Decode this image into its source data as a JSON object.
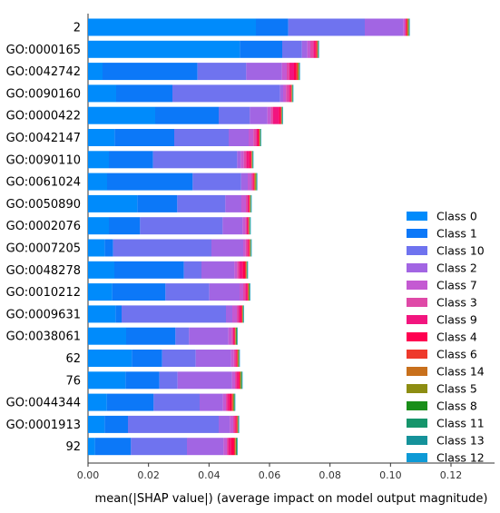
{
  "chart_data": {
    "type": "bar",
    "orientation": "horizontal",
    "stacked": true,
    "title": "",
    "xlabel": "mean(|SHAP value|) (average impact on model output magnitude)",
    "ylabel": "",
    "xlim": [
      0,
      0.1344
    ],
    "xticks": [
      "0.00",
      "0.02",
      "0.04",
      "0.06",
      "0.08",
      "0.10",
      "0.12"
    ],
    "xtick_values": [
      0,
      0.02,
      0.04,
      0.06,
      0.08,
      0.1,
      0.12
    ],
    "grid": false,
    "legend_position": "lower-right",
    "categories": [
      "2",
      "GO:0000165",
      "GO:0042742",
      "GO:0090160",
      "GO:0000422",
      "GO:0042147",
      "GO:0090110",
      "GO:0061024",
      "GO:0050890",
      "GO:0002076",
      "GO:0007205",
      "GO:0048278",
      "GO:0010212",
      "GO:0009631",
      "GO:0038061",
      "62",
      "76",
      "GO:0044344",
      "GO:0001913",
      "92"
    ],
    "series": [
      {
        "name": "Class 0",
        "color": "#008bfb",
        "values": [
          0.0555,
          0.0502,
          0.0048,
          0.0093,
          0.0222,
          0.0088,
          0.0069,
          0.0063,
          0.0163,
          0.0069,
          0.0055,
          0.0087,
          0.008,
          0.0091,
          0.0126,
          0.0145,
          0.0124,
          0.0062,
          0.0055,
          0.0023
        ]
      },
      {
        "name": "Class 1",
        "color": "#0c78f8",
        "values": [
          0.0107,
          0.014,
          0.0314,
          0.0186,
          0.021,
          0.0197,
          0.0146,
          0.0283,
          0.0132,
          0.0103,
          0.0028,
          0.023,
          0.0176,
          0.002,
          0.0163,
          0.01,
          0.0112,
          0.0155,
          0.0077,
          0.0119
        ]
      },
      {
        "name": "Class 10",
        "color": "#6f73ef",
        "values": [
          0.0253,
          0.0065,
          0.0161,
          0.0356,
          0.0103,
          0.018,
          0.0278,
          0.016,
          0.0159,
          0.0273,
          0.0325,
          0.0058,
          0.0145,
          0.0345,
          0.0045,
          0.0111,
          0.006,
          0.0152,
          0.03,
          0.0185
        ]
      },
      {
        "name": "Class 2",
        "color": "#a265e3",
        "values": [
          0.0127,
          0.0018,
          0.0118,
          0.001,
          0.0058,
          0.0066,
          0.0012,
          0.0022,
          0.0053,
          0.0066,
          0.0105,
          0.0109,
          0.01,
          0.0021,
          0.013,
          0.0117,
          0.018,
          0.0077,
          0.0037,
          0.0121
        ]
      },
      {
        "name": "Class 7",
        "color": "#c45ad2",
        "values": [
          0.0005,
          0.001,
          0.0016,
          0.001,
          0.0011,
          0.0016,
          0.001,
          0.0012,
          0.0015,
          0.0009,
          0.0008,
          0.0009,
          0.0012,
          0.0015,
          0.0011,
          0.0009,
          0.001,
          0.001,
          0.0011,
          0.0011
        ]
      },
      {
        "name": "Class 3",
        "color": "#df49a7",
        "values": [
          0.0003,
          0.001,
          0.0008,
          0.0009,
          0.0007,
          0.0009,
          0.0008,
          0.0004,
          0.0006,
          0.0005,
          0.0005,
          0.0006,
          0.0007,
          0.0006,
          0.0005,
          0.0005,
          0.0004,
          0.0004,
          0.0004,
          0.0004
        ]
      },
      {
        "name": "Class 9",
        "color": "#f2157f",
        "values": [
          0.0002,
          0.0006,
          0.0016,
          0.0004,
          0.002,
          0.0005,
          0.001,
          0.0003,
          0.0003,
          0.0003,
          0.0004,
          0.0012,
          0.0006,
          0.0005,
          0.0003,
          0.0004,
          0.0007,
          0.0007,
          0.0004,
          0.0009
        ]
      },
      {
        "name": "Class 4",
        "color": "#ff0051",
        "values": [
          0.0001,
          0.0004,
          0.0008,
          0.0003,
          0.0006,
          0.0004,
          0.0006,
          0.0002,
          0.0002,
          0.0002,
          0.0003,
          0.0008,
          0.0002,
          0.0005,
          0.0002,
          0.0002,
          0.0004,
          0.0008,
          0.0003,
          0.0011
        ]
      },
      {
        "name": "Class 6",
        "color": "#ee3a2c",
        "values": [
          0.0003,
          0.0003,
          0.0004,
          0.0002,
          0.0002,
          0.0002,
          0.0002,
          0.0002,
          0.0002,
          0.0002,
          0.0002,
          0.0004,
          0.0002,
          0.0002,
          0.0002,
          0.0002,
          0.0002,
          0.0004,
          0.0003,
          0.0004
        ]
      },
      {
        "name": "Class 14",
        "color": "#c8701c",
        "values": [
          0.0002,
          0.0001,
          0.0002,
          0.0001,
          0.0001,
          0.0001,
          0.0001,
          0.0002,
          0.0001,
          0.0001,
          0.0001,
          0.0001,
          0.0001,
          0.0001,
          0.0001,
          0.0001,
          0.0001,
          0.0001,
          0.0001,
          0.0001
        ]
      },
      {
        "name": "Class 5",
        "color": "#8d8d12",
        "values": [
          0.0002,
          0.0001,
          0.0002,
          0.0001,
          0.0001,
          0.0001,
          0.0001,
          0.0003,
          0.0001,
          0.0001,
          0.0001,
          0.0001,
          0.0002,
          0.0001,
          0.0002,
          0.0002,
          0.0002,
          0.0002,
          0.0001,
          0.0002
        ]
      },
      {
        "name": "Class 8",
        "color": "#1a8e1a",
        "values": [
          0.0001,
          0.0001,
          0.0001,
          0.0001,
          0.0001,
          0.0001,
          0.0001,
          0.0001,
          0.0001,
          0.0001,
          0.0001,
          0.0001,
          0.0001,
          0.0001,
          0.0002,
          0.0001,
          0.0002,
          0.0002,
          0.0001,
          0.0002
        ]
      },
      {
        "name": "Class 11",
        "color": "#16956b",
        "values": [
          0.0001,
          0.0001,
          0.0001,
          0.0001,
          0.0001,
          0.0001,
          0.0001,
          0.0001,
          0.0001,
          0.0001,
          0.0001,
          0.0001,
          0.0001,
          0.0001,
          0.0001,
          0.0001,
          0.0001,
          0.0001,
          0.0001,
          0.0001
        ]
      },
      {
        "name": "Class 13",
        "color": "#15929a",
        "values": [
          0.0001,
          0.0001,
          0.0001,
          0.0001,
          0.0001,
          0.0001,
          0.0001,
          0.0001,
          0.0001,
          0.0001,
          0.0001,
          0.0001,
          0.0001,
          0.0001,
          0.0001,
          0.0001,
          0.0001,
          0.0001,
          0.0001,
          0.0001
        ]
      },
      {
        "name": "Class 12",
        "color": "#0d9ad6",
        "values": [
          0.0001,
          0.0001,
          0.0001,
          0.0001,
          0.0001,
          0.0001,
          0.0001,
          0.0001,
          0.0001,
          0.0001,
          0.0001,
          0.0001,
          0.0001,
          0.0001,
          0.0001,
          0.0001,
          0.0001,
          0.0001,
          0.0001,
          0.0001
        ]
      }
    ]
  }
}
